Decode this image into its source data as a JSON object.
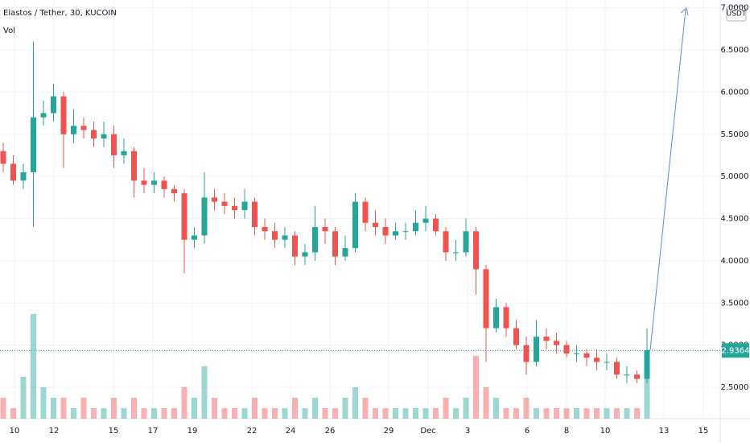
{
  "chart_data": {
    "type": "candlestick",
    "title": "Elastos / Tether, 30, KUCOIN",
    "volume_label": "Vol",
    "currency": "USDT",
    "up_color": "#26a69a",
    "down_color": "#ef5350",
    "ylim": [
      2.128,
      7.092
    ],
    "yticks": [
      {
        "value": 2.5,
        "label": "2.5000"
      },
      {
        "value": 3,
        "label": "3.0000"
      },
      {
        "value": 3.5,
        "label": "3.5000"
      },
      {
        "value": 4,
        "label": "4.0000"
      },
      {
        "value": 4.5,
        "label": "4.5000"
      },
      {
        "value": 5,
        "label": "5.0000"
      },
      {
        "value": 5.5,
        "label": "5.5000"
      },
      {
        "value": 6,
        "label": "6.0000"
      },
      {
        "value": 6.5,
        "label": "6.5000"
      },
      {
        "value": 7,
        "label": "7.0000"
      }
    ],
    "xticks": [
      "10",
      "12",
      "15",
      "17",
      "19",
      "22",
      "24",
      "26",
      "29",
      "Dec",
      "3",
      "6",
      "8",
      "10",
      "13",
      "15"
    ],
    "grid": true,
    "last_price": {
      "value": 2.9364,
      "label": "2.9364"
    },
    "open": [
      5.3,
      5.15,
      4.95,
      5.05,
      5.7,
      5.75,
      5.95,
      5.5,
      5.6,
      5.55,
      5.45,
      5.5,
      5.25,
      5.3,
      4.95,
      4.9,
      4.95,
      4.85,
      4.8,
      4.25,
      4.3,
      4.75,
      4.7,
      4.65,
      4.6,
      4.7,
      4.4,
      4.35,
      4.25,
      4.3,
      4.05,
      4.1,
      4.4,
      4.35,
      4.05,
      4.15,
      4.7,
      4.45,
      4.4,
      4.3,
      4.35,
      4.35,
      4.45,
      4.5,
      4.35,
      4.1,
      4.1,
      4.35,
      3.9,
      3.2,
      3.45,
      3.2,
      3.0,
      2.8,
      3.1,
      3.05,
      3.0,
      2.9,
      2.9,
      2.85,
      2.8,
      2.8,
      2.65,
      2.65,
      2.6
    ],
    "high": [
      5.4,
      5.25,
      5.15,
      6.6,
      5.9,
      6.1,
      6.0,
      5.8,
      5.7,
      5.65,
      5.65,
      5.6,
      5.45,
      5.35,
      5.1,
      5.05,
      5.0,
      4.9,
      4.85,
      4.4,
      5.05,
      4.85,
      4.8,
      4.75,
      4.85,
      4.75,
      4.5,
      4.45,
      4.4,
      4.35,
      4.2,
      4.65,
      4.5,
      4.4,
      4.3,
      4.8,
      4.75,
      4.6,
      4.5,
      4.45,
      4.45,
      4.6,
      4.65,
      4.55,
      4.4,
      4.25,
      4.5,
      4.4,
      3.95,
      3.55,
      3.5,
      3.3,
      3.1,
      3.3,
      3.2,
      3.15,
      3.05,
      3.0,
      2.95,
      2.95,
      2.9,
      2.85,
      2.75,
      2.7,
      3.2
    ],
    "low": [
      5.05,
      4.9,
      4.85,
      4.4,
      5.6,
      5.65,
      5.1,
      5.4,
      5.45,
      5.35,
      5.35,
      5.1,
      5.15,
      4.75,
      4.8,
      4.8,
      4.75,
      4.7,
      3.85,
      4.15,
      4.2,
      4.6,
      4.55,
      4.5,
      4.5,
      4.3,
      4.25,
      4.15,
      4.15,
      3.95,
      3.95,
      4.0,
      4.2,
      3.95,
      4.0,
      4.1,
      4.35,
      4.3,
      4.2,
      4.25,
      4.25,
      4.3,
      4.35,
      4.3,
      4.0,
      4.0,
      4.05,
      3.6,
      2.8,
      3.15,
      3.1,
      2.95,
      2.65,
      2.75,
      2.95,
      2.9,
      2.85,
      2.8,
      2.75,
      2.7,
      2.7,
      2.6,
      2.55,
      2.55,
      2.55
    ],
    "close": [
      5.15,
      4.95,
      5.05,
      5.7,
      5.75,
      5.95,
      5.5,
      5.6,
      5.55,
      5.45,
      5.5,
      5.25,
      5.3,
      4.95,
      4.9,
      4.95,
      4.85,
      4.8,
      4.25,
      4.3,
      4.75,
      4.7,
      4.65,
      4.6,
      4.7,
      4.4,
      4.35,
      4.25,
      4.3,
      4.05,
      4.1,
      4.4,
      4.35,
      4.05,
      4.15,
      4.7,
      4.45,
      4.4,
      4.3,
      4.35,
      4.35,
      4.45,
      4.5,
      4.35,
      4.1,
      4.1,
      4.35,
      3.9,
      3.2,
      3.45,
      3.2,
      3.0,
      2.8,
      3.1,
      3.05,
      3.0,
      2.9,
      2.9,
      2.85,
      2.8,
      2.8,
      2.65,
      2.65,
      2.6,
      2.94
    ],
    "volume": [
      2,
      1,
      4,
      10,
      3,
      2,
      2,
      1,
      2,
      1,
      1,
      2,
      1,
      2,
      1,
      1,
      1,
      1,
      3,
      2,
      5,
      2,
      1,
      1,
      1,
      2,
      1,
      1,
      1,
      2,
      1,
      2,
      1,
      1,
      2,
      3,
      2,
      1,
      1,
      1,
      1,
      1,
      1,
      1,
      2,
      1,
      2,
      6,
      3,
      2,
      1,
      1,
      2,
      1,
      1,
      1,
      1,
      1,
      1,
      1,
      1,
      1,
      1,
      1,
      4
    ]
  }
}
